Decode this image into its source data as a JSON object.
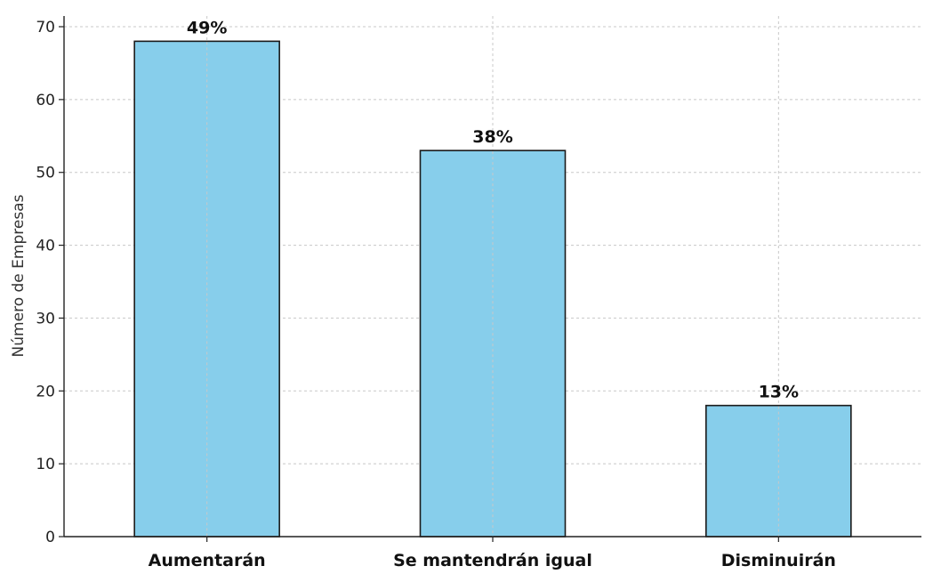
{
  "chart_data": {
    "type": "bar",
    "title": "",
    "xlabel": "",
    "ylabel": "Número de Empresas",
    "categories": [
      "Aumentarán",
      "Se mantendrán igual",
      "Disminuirán"
    ],
    "values": [
      68,
      53,
      18
    ],
    "data_labels": [
      "49%",
      "38%",
      "13%"
    ],
    "ylim": [
      0,
      70
    ],
    "yticks": [
      0,
      10,
      20,
      30,
      40,
      50,
      60,
      70
    ],
    "grid": true,
    "colors": {
      "bar_fill": "#87ceeb",
      "bar_edge": "#1a1a1a"
    }
  }
}
